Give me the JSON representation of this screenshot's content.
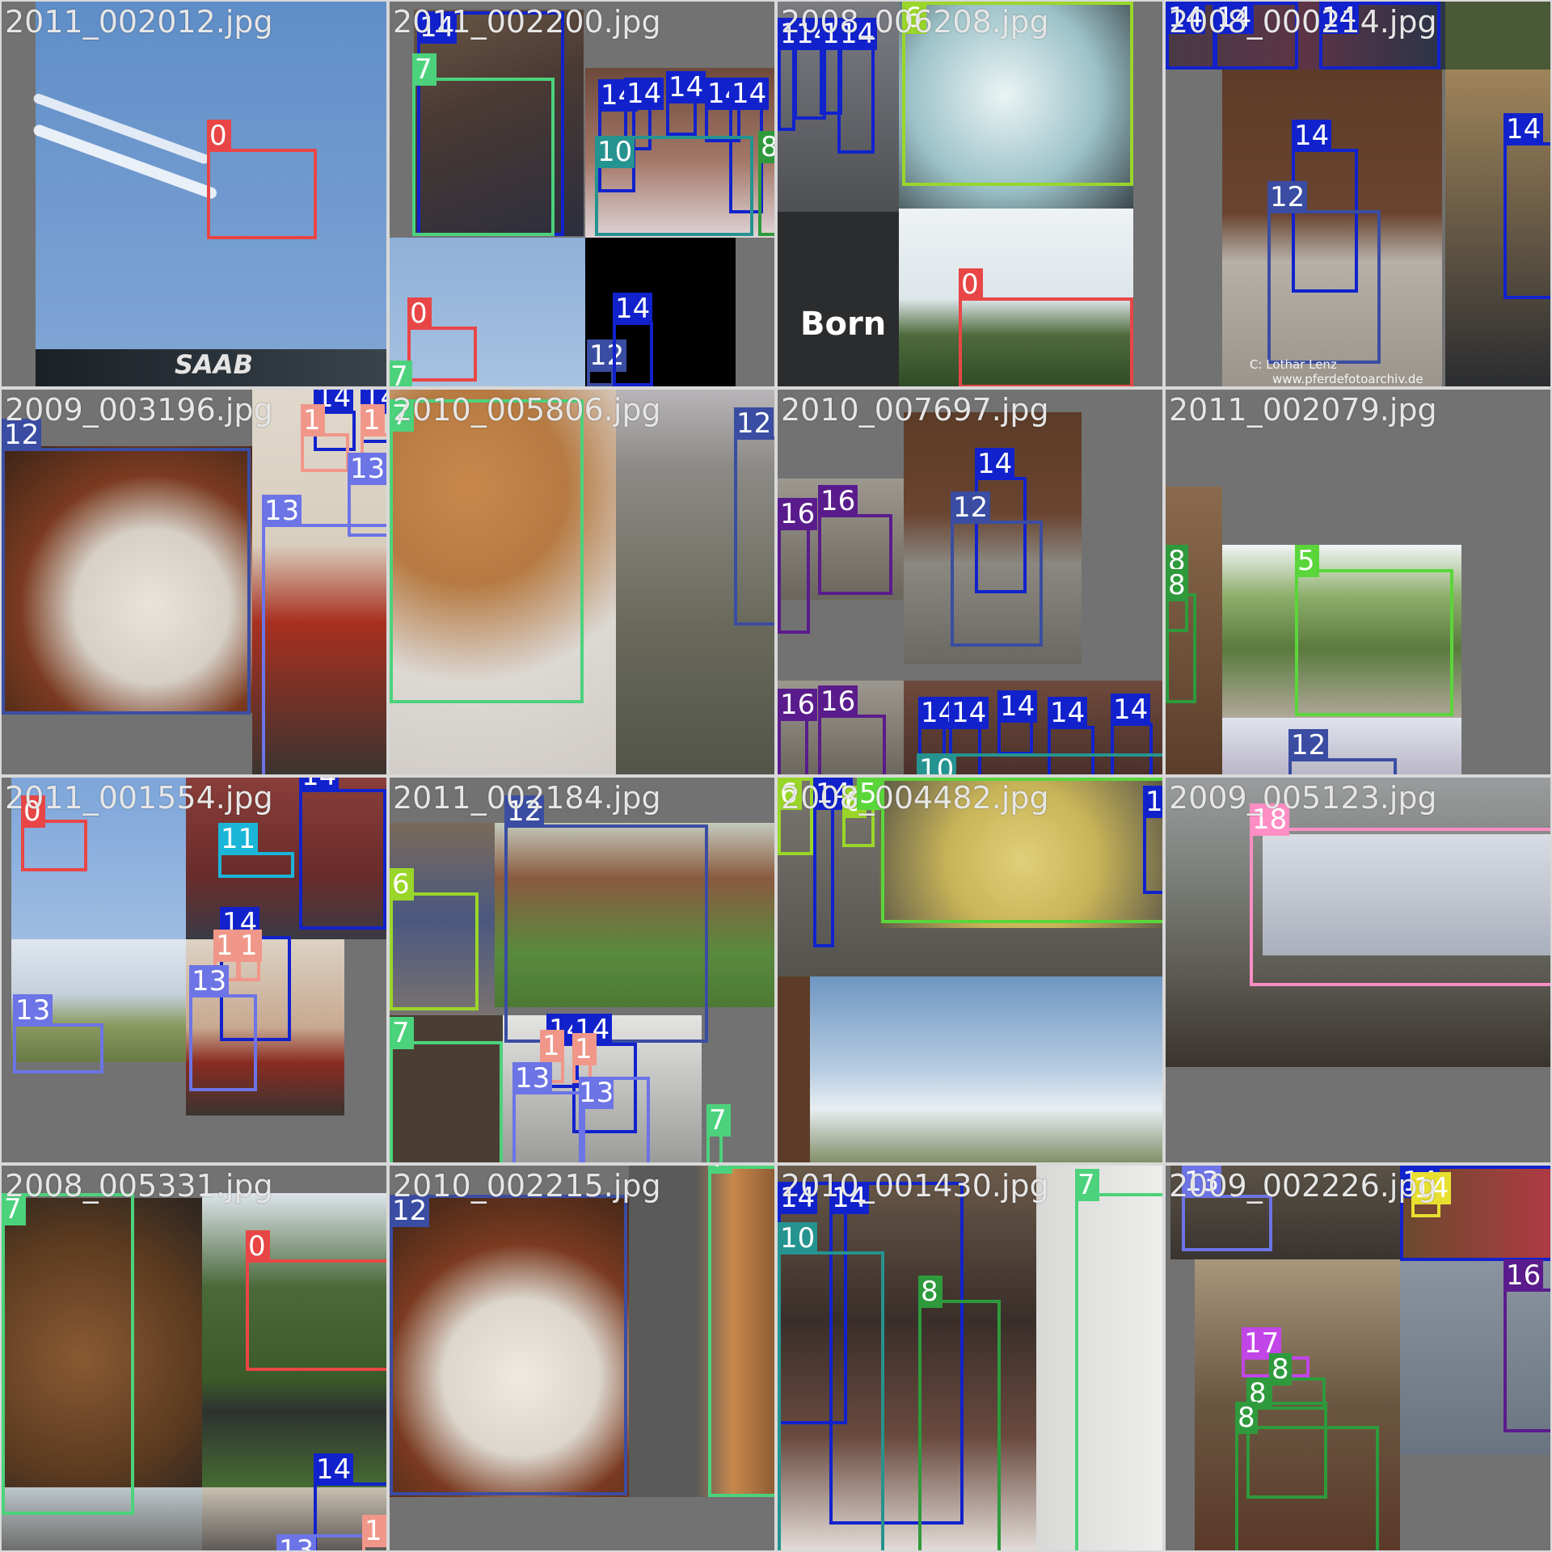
{
  "image": {
    "title": "YOLO training batch mosaic with class-index bounding boxes",
    "class_colors": {
      "0": "#e84646",
      "1": "#f0978a",
      "5": "#5ad63a",
      "6": "#9ad62a",
      "7": "#4cd27c",
      "8": "#2e9a3c",
      "10": "#25938f",
      "11": "#1bb5d8",
      "12": "#3a4da2",
      "13": "#6c74e6",
      "14": "#1122cc",
      "16": "#5a1c8c",
      "17": "#c245e8",
      "18": "#ff8ec4"
    }
  },
  "tiles": [
    {
      "name": "tile-1",
      "filename": "2011_002012.jpg",
      "boxes": [
        {
          "cls": "0",
          "label": "0"
        }
      ],
      "texts": {
        "saab": "SAAB"
      }
    },
    {
      "name": "tile-2",
      "filename": "2011_002200.jpg",
      "boxes": [
        {
          "cls": "14",
          "label": "14"
        },
        {
          "cls": "7",
          "label": "7"
        },
        {
          "cls": "14",
          "label": "14"
        },
        {
          "cls": "14",
          "label": "14"
        },
        {
          "cls": "14",
          "label": "14"
        },
        {
          "cls": "14",
          "label": "14"
        },
        {
          "cls": "14",
          "label": "14"
        },
        {
          "cls": "10",
          "label": "10"
        },
        {
          "cls": "8",
          "label": "8"
        },
        {
          "cls": "0",
          "label": "0"
        },
        {
          "cls": "12",
          "label": "12"
        },
        {
          "cls": "14",
          "label": "14"
        },
        {
          "cls": "7",
          "label": "7"
        }
      ]
    },
    {
      "name": "tile-3",
      "filename": "2008_006208.jpg",
      "boxes": [
        {
          "cls": "14",
          "label": "14"
        },
        {
          "cls": "14",
          "label": "14"
        },
        {
          "cls": "14",
          "label": "14"
        },
        {
          "cls": "14",
          "label": "14"
        },
        {
          "cls": "6",
          "label": "6"
        },
        {
          "cls": "0",
          "label": "0"
        }
      ],
      "texts": {
        "born": "Born"
      }
    },
    {
      "name": "tile-4",
      "filename": "2008_000214.jpg",
      "boxes": [
        {
          "cls": "14",
          "label": "14"
        },
        {
          "cls": "14",
          "label": "14"
        },
        {
          "cls": "14",
          "label": "14"
        },
        {
          "cls": "14",
          "label": "14"
        },
        {
          "cls": "12",
          "label": "12"
        },
        {
          "cls": "14",
          "label": "14"
        }
      ],
      "texts": {
        "watermark_1": "C: Lothar Lenz",
        "watermark_2": "www.pferdefotoarchiv.de"
      }
    },
    {
      "name": "tile-5",
      "filename": "2009_003196.jpg",
      "boxes": [
        {
          "cls": "12",
          "label": "12"
        },
        {
          "cls": "14",
          "label": "14"
        },
        {
          "cls": "14",
          "label": "14"
        },
        {
          "cls": "1",
          "label": "1"
        },
        {
          "cls": "1",
          "label": "1"
        },
        {
          "cls": "13",
          "label": "13"
        },
        {
          "cls": "13",
          "label": "13"
        }
      ]
    },
    {
      "name": "tile-6",
      "filename": "2010_005806.jpg",
      "boxes": [
        {
          "cls": "7",
          "label": "7"
        },
        {
          "cls": "12",
          "label": "12"
        }
      ]
    },
    {
      "name": "tile-7",
      "filename": "2010_007697.jpg",
      "boxes": [
        {
          "cls": "16",
          "label": "16"
        },
        {
          "cls": "16",
          "label": "16"
        },
        {
          "cls": "14",
          "label": "14"
        },
        {
          "cls": "12",
          "label": "12"
        },
        {
          "cls": "16",
          "label": "16"
        },
        {
          "cls": "16",
          "label": "16"
        },
        {
          "cls": "14",
          "label": "14"
        },
        {
          "cls": "14",
          "label": "14"
        },
        {
          "cls": "14",
          "label": "14"
        },
        {
          "cls": "14",
          "label": "14"
        },
        {
          "cls": "14",
          "label": "14"
        },
        {
          "cls": "10",
          "label": "10"
        }
      ]
    },
    {
      "name": "tile-8",
      "filename": "2011_002079.jpg",
      "boxes": [
        {
          "cls": "5",
          "label": "5"
        },
        {
          "cls": "8",
          "label": "8"
        },
        {
          "cls": "8",
          "label": "8"
        },
        {
          "cls": "12",
          "label": "12"
        }
      ]
    },
    {
      "name": "tile-9",
      "filename": "2011_001554.jpg",
      "boxes": [
        {
          "cls": "0",
          "label": "0"
        },
        {
          "cls": "11",
          "label": "11"
        },
        {
          "cls": "14",
          "label": "14"
        },
        {
          "cls": "14",
          "label": "14"
        },
        {
          "cls": "1",
          "label": "1"
        },
        {
          "cls": "1",
          "label": "1"
        },
        {
          "cls": "13",
          "label": "13"
        },
        {
          "cls": "13",
          "label": "13"
        }
      ]
    },
    {
      "name": "tile-10",
      "filename": "2011_002184.jpg",
      "boxes": [
        {
          "cls": "12",
          "label": "12"
        },
        {
          "cls": "6",
          "label": "6"
        },
        {
          "cls": "7",
          "label": "7"
        },
        {
          "cls": "14",
          "label": "14"
        },
        {
          "cls": "14",
          "label": "14"
        },
        {
          "cls": "1",
          "label": "1"
        },
        {
          "cls": "1",
          "label": "1"
        },
        {
          "cls": "13",
          "label": "13"
        },
        {
          "cls": "13",
          "label": "13"
        },
        {
          "cls": "7",
          "label": "7"
        }
      ]
    },
    {
      "name": "tile-11",
      "filename": "2008_004482.jpg",
      "boxes": [
        {
          "cls": "6",
          "label": "6"
        },
        {
          "cls": "14",
          "label": "14"
        },
        {
          "cls": "6",
          "label": "6"
        },
        {
          "cls": "5",
          "label": "5"
        },
        {
          "cls": "14",
          "label": "14"
        }
      ]
    },
    {
      "name": "tile-12",
      "filename": "2009_005123.jpg",
      "boxes": [
        {
          "cls": "18",
          "label": "18"
        }
      ]
    },
    {
      "name": "tile-13",
      "filename": "2008_005331.jpg",
      "boxes": [
        {
          "cls": "7",
          "label": "7"
        },
        {
          "cls": "0",
          "label": "0"
        },
        {
          "cls": "14",
          "label": "14"
        },
        {
          "cls": "13",
          "label": "13"
        },
        {
          "cls": "1",
          "label": "1"
        }
      ]
    },
    {
      "name": "tile-14",
      "filename": "2010_002215.jpg",
      "boxes": [
        {
          "cls": "12",
          "label": "12"
        },
        {
          "cls": "7",
          "label": "7"
        }
      ]
    },
    {
      "name": "tile-15",
      "filename": "2010_001430.jpg",
      "boxes": [
        {
          "cls": "14",
          "label": "14"
        },
        {
          "cls": "14",
          "label": "14"
        },
        {
          "cls": "10",
          "label": "10"
        },
        {
          "cls": "8",
          "label": "8"
        },
        {
          "cls": "7",
          "label": "7"
        }
      ]
    },
    {
      "name": "tile-16",
      "filename": "2009_002226.jpg",
      "boxes": [
        {
          "cls": "13",
          "label": "13"
        },
        {
          "cls": "14",
          "label": "14"
        },
        {
          "cls": "14",
          "label": "14"
        },
        {
          "cls": "16",
          "label": "16"
        },
        {
          "cls": "17",
          "label": "17"
        },
        {
          "cls": "8",
          "label": "8"
        },
        {
          "cls": "8",
          "label": "8"
        },
        {
          "cls": "8",
          "label": "8"
        }
      ]
    }
  ]
}
